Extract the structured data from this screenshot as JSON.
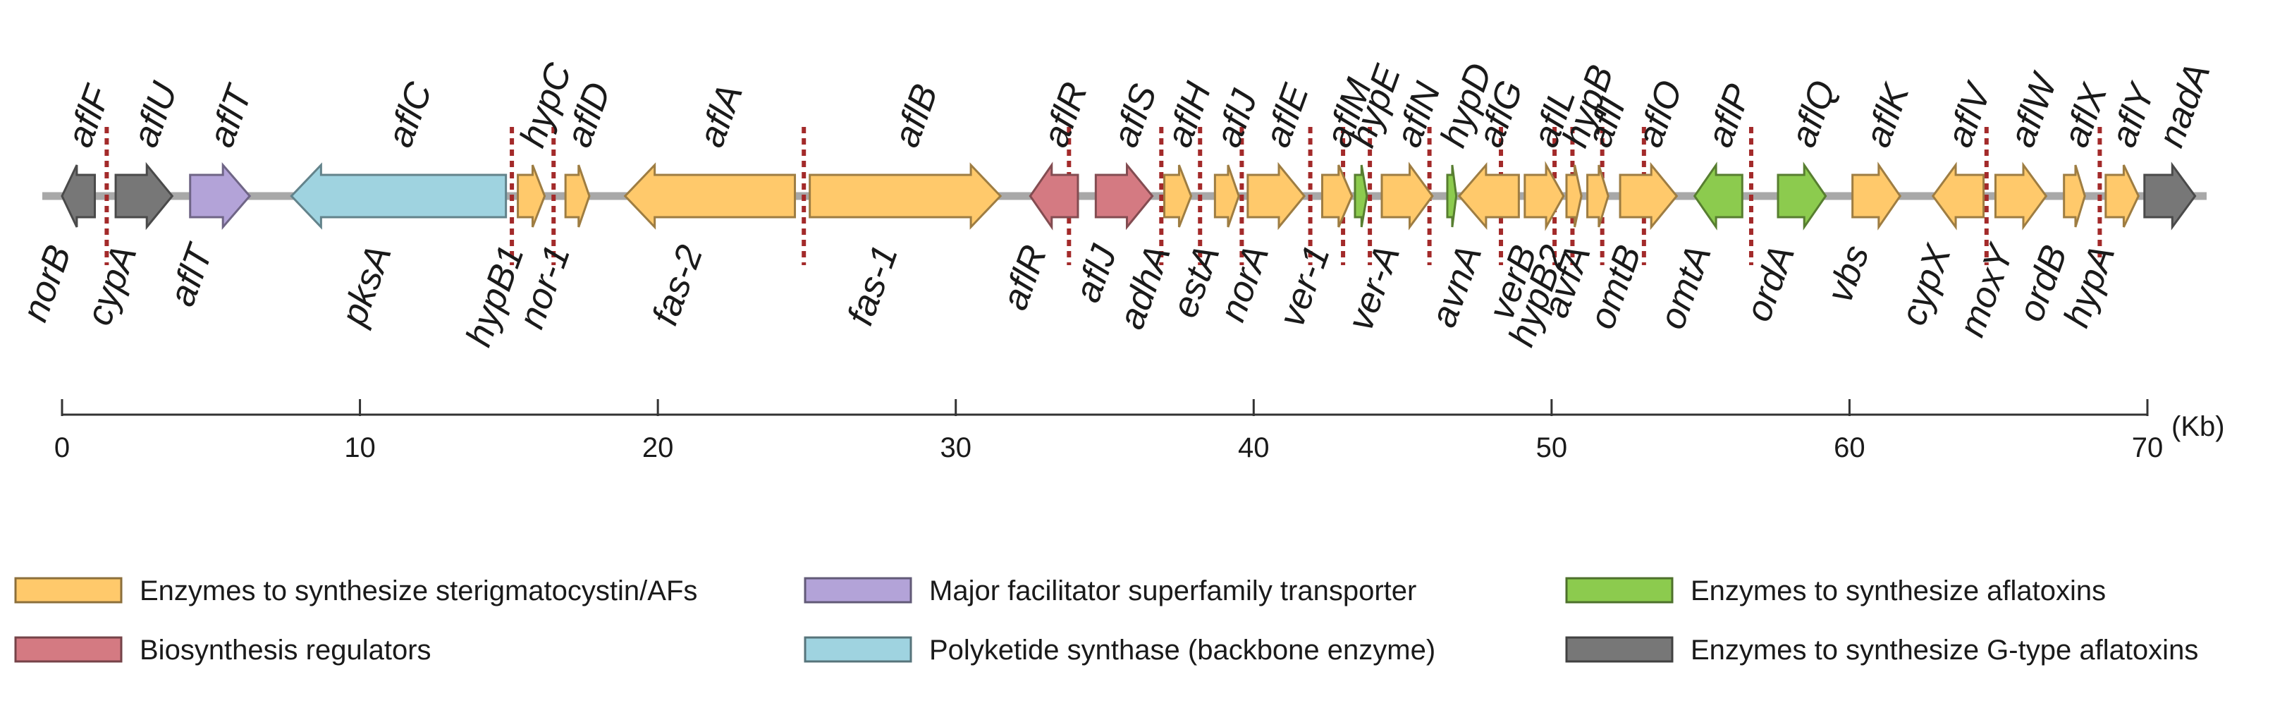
{
  "colors": {
    "orange": "#FFC96B",
    "red": "#D47A82",
    "purple": "#B3A3D8",
    "blue": "#9FD3E0",
    "green": "#8CCB4E",
    "gray": "#777777",
    "backbone": "#A8A8A8",
    "breakpoint": "#A32A2A"
  },
  "genes": [
    {
      "top": "aflF",
      "bottom": "norB",
      "start": 0.0,
      "end": 1.1,
      "dir": "left",
      "color": "gray"
    },
    {
      "top": "aflU",
      "bottom": "cypA",
      "start": 1.8,
      "end": 3.7,
      "dir": "right",
      "color": "gray"
    },
    {
      "top": "aflT",
      "bottom": "aflT",
      "start": 4.3,
      "end": 6.3,
      "dir": "right",
      "color": "purple"
    },
    {
      "top": "aflC",
      "bottom": "pksA",
      "start": 7.7,
      "end": 14.9,
      "dir": "left",
      "color": "blue"
    },
    {
      "top": "hypC",
      "bottom": "hypB1",
      "start": 15.3,
      "end": 16.2,
      "dir": "right",
      "color": "orange"
    },
    {
      "top": "aflD",
      "bottom": "nor-1",
      "start": 16.9,
      "end": 17.7,
      "dir": "right",
      "color": "orange"
    },
    {
      "top": "aflA",
      "bottom": "fas-2",
      "start": 18.9,
      "end": 24.6,
      "dir": "left",
      "color": "orange"
    },
    {
      "top": "aflB",
      "bottom": "fas-1",
      "start": 25.1,
      "end": 31.5,
      "dir": "right",
      "color": "orange"
    },
    {
      "top": "aflR",
      "bottom": "aflR",
      "start": 32.5,
      "end": 34.1,
      "dir": "left",
      "color": "red"
    },
    {
      "top": "aflS",
      "bottom": "aflJ",
      "start": 34.7,
      "end": 36.6,
      "dir": "right",
      "color": "red"
    },
    {
      "top": "aflH",
      "bottom": "adhA",
      "start": 37.0,
      "end": 37.9,
      "dir": "right",
      "color": "orange"
    },
    {
      "top": "aflJ",
      "bottom": "estA",
      "start": 38.7,
      "end": 39.5,
      "dir": "right",
      "color": "orange"
    },
    {
      "top": "aflE",
      "bottom": "norA",
      "start": 39.8,
      "end": 41.7,
      "dir": "right",
      "color": "orange"
    },
    {
      "top": "aflM",
      "bottom": "ver-1",
      "start": 42.3,
      "end": 43.3,
      "dir": "right",
      "color": "orange"
    },
    {
      "top": "hypE",
      "bottom": "",
      "start": 43.4,
      "end": 43.8,
      "dir": "right",
      "color": "green"
    },
    {
      "top": "aflN",
      "bottom": "ver-A",
      "start": 44.3,
      "end": 46.0,
      "dir": "right",
      "color": "orange"
    },
    {
      "top": "hypD",
      "bottom": "",
      "start": 46.5,
      "end": 46.8,
      "dir": "right",
      "color": "green"
    },
    {
      "top": "aflG",
      "bottom": "avnA",
      "start": 46.9,
      "end": 48.9,
      "dir": "left",
      "color": "orange"
    },
    {
      "top": "aflL",
      "bottom": "verB",
      "start": 49.1,
      "end": 50.4,
      "dir": "right",
      "color": "orange"
    },
    {
      "top": "hypB",
      "bottom": "hypB2",
      "start": 50.5,
      "end": 51.0,
      "dir": "right",
      "color": "orange"
    },
    {
      "top": "aflI",
      "bottom": "avfA",
      "start": 51.2,
      "end": 51.9,
      "dir": "right",
      "color": "orange"
    },
    {
      "top": "aflO",
      "bottom": "omtB",
      "start": 52.3,
      "end": 54.2,
      "dir": "right",
      "color": "orange"
    },
    {
      "top": "aflP",
      "bottom": "omtA",
      "start": 54.8,
      "end": 56.4,
      "dir": "left",
      "color": "green"
    },
    {
      "top": "aflQ",
      "bottom": "ordA",
      "start": 57.6,
      "end": 59.2,
      "dir": "right",
      "color": "green"
    },
    {
      "top": "aflK",
      "bottom": "vbs",
      "start": 60.1,
      "end": 61.7,
      "dir": "right",
      "color": "orange"
    },
    {
      "top": "aflV",
      "bottom": "cypX",
      "start": 62.8,
      "end": 64.5,
      "dir": "left",
      "color": "orange"
    },
    {
      "top": "aflW",
      "bottom": "moxY",
      "start": 64.9,
      "end": 66.6,
      "dir": "right",
      "color": "orange"
    },
    {
      "top": "aflX",
      "bottom": "ordB",
      "start": 67.2,
      "end": 67.9,
      "dir": "right",
      "color": "orange"
    },
    {
      "top": "aflY",
      "bottom": "hypA",
      "start": 68.6,
      "end": 69.7,
      "dir": "right",
      "color": "orange"
    },
    {
      "top": "nadA",
      "bottom": "",
      "start": 69.9,
      "end": 71.6,
      "dir": "right",
      "color": "gray"
    }
  ],
  "breakpoints": [
    1.5,
    15.1,
    16.5,
    24.9,
    33.8,
    36.9,
    38.2,
    39.6,
    41.9,
    43.0,
    43.9,
    45.9,
    48.3,
    50.1,
    50.7,
    51.7,
    53.1,
    56.7,
    64.6,
    68.4
  ],
  "axis": {
    "min": 0,
    "max": 70,
    "ticks": [
      0,
      10,
      20,
      30,
      40,
      50,
      60,
      70
    ],
    "unit": "(Kb)"
  },
  "legend": [
    {
      "color": "orange",
      "label": "Enzymes to synthesize sterigmatocystin/AFs"
    },
    {
      "color": "red",
      "label": "Biosynthesis regulators"
    },
    {
      "color": "purple",
      "label": "Major facilitator superfamily transporter"
    },
    {
      "color": "blue",
      "label": "Polyketide synthase (backbone enzyme)"
    },
    {
      "color": "green",
      "label": "Enzymes to synthesize aflatoxins"
    },
    {
      "color": "gray",
      "label": "Enzymes to synthesize G-type aflatoxins"
    }
  ]
}
